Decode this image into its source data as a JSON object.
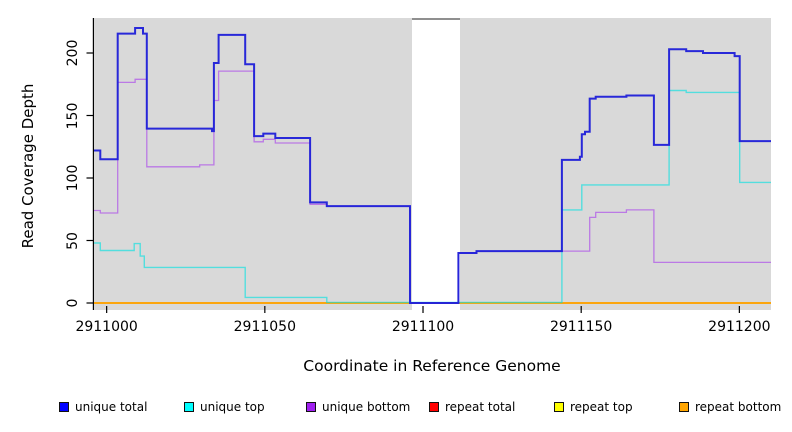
{
  "chart_data": {
    "type": "line",
    "subtype": "step",
    "title": "",
    "xlabel": "Coordinate in Reference Genome",
    "ylabel": "Read Coverage Depth",
    "panel_bg": "#d9d9d9",
    "xlim": [
      2910996,
      2911210
    ],
    "ylim": [
      -5.6,
      228
    ],
    "x_ticks": [
      {
        "value": 2911000,
        "label": "2911000"
      },
      {
        "value": 2911050,
        "label": "2911050"
      },
      {
        "value": 2911100,
        "label": "2911100"
      },
      {
        "value": 2911150,
        "label": "2911150"
      },
      {
        "value": 2911200,
        "label": "2911200"
      }
    ],
    "y_ticks": [
      {
        "value": 0,
        "label": "0"
      },
      {
        "value": 50,
        "label": "50"
      },
      {
        "value": 100,
        "label": "100"
      },
      {
        "value": 150,
        "label": "150"
      },
      {
        "value": 200,
        "label": "200"
      }
    ],
    "gap_region": {
      "x_start": 2911096.4,
      "x_end": 2911111.7,
      "cap_color": "#8f8f8f"
    },
    "series": [
      {
        "name": "repeat total",
        "color": "#e00000",
        "width": 1.4,
        "opacity": 1,
        "points": [
          [
            2910996,
            0
          ]
        ]
      },
      {
        "name": "repeat top",
        "color": "#ffff00",
        "width": 1.4,
        "opacity": 1,
        "points": [
          [
            2910996,
            0
          ]
        ]
      },
      {
        "name": "repeat bottom",
        "color": "#ff9f00",
        "width": 1.6,
        "opacity": 1,
        "points": [
          [
            2910996,
            0
          ]
        ]
      },
      {
        "name": "unique bottom",
        "color": "#a020f0",
        "width": 1.3,
        "opacity": 0.52,
        "points": [
          [
            2910996,
            74
          ],
          [
            2910998,
            72
          ],
          [
            2911003.5,
            176.5
          ],
          [
            2911009,
            179
          ],
          [
            2911012.7,
            109
          ],
          [
            2911029.4,
            110.5
          ],
          [
            2911033.9,
            162
          ],
          [
            2911035.4,
            185.5
          ],
          [
            2911046.6,
            129
          ],
          [
            2911049.5,
            131
          ],
          [
            2911053.3,
            128
          ],
          [
            2911064.3,
            79
          ],
          [
            2911069.6,
            77.5
          ],
          [
            2911095.9,
            0
          ],
          [
            2911111.2,
            40
          ],
          [
            2911116.9,
            41.5
          ],
          [
            2911152.7,
            68.5
          ],
          [
            2911154.6,
            72.5
          ],
          [
            2911164.3,
            74.5
          ],
          [
            2911173,
            32.5
          ]
        ]
      },
      {
        "name": "unique top",
        "color": "#00e0e0",
        "width": 1.4,
        "opacity": 0.62,
        "points": [
          [
            2910996,
            48
          ],
          [
            2910998,
            42
          ],
          [
            2911008.7,
            47.5
          ],
          [
            2911010.6,
            37.5
          ],
          [
            2911011.9,
            28.5
          ],
          [
            2911043.8,
            4.5
          ],
          [
            2911069.6,
            0.5
          ],
          [
            2911143.9,
            74.5
          ],
          [
            2911150.2,
            94.5
          ],
          [
            2911177.8,
            170
          ],
          [
            2911183.2,
            168.5
          ],
          [
            2911200.1,
            96.5
          ]
        ]
      },
      {
        "name": "unique total",
        "color": "#2020d8",
        "width": 2,
        "opacity": 0.96,
        "points": [
          [
            2910996,
            122
          ],
          [
            2910998,
            115
          ],
          [
            2911003.5,
            215.5
          ],
          [
            2911009,
            220
          ],
          [
            2911011.5,
            215.5
          ],
          [
            2911012.7,
            139.5
          ],
          [
            2911033.3,
            137.5
          ],
          [
            2911033.9,
            192
          ],
          [
            2911035.4,
            214.5
          ],
          [
            2911043.8,
            191
          ],
          [
            2911046.6,
            133.5
          ],
          [
            2911049.5,
            135.5
          ],
          [
            2911053.3,
            132
          ],
          [
            2911064.3,
            80.5
          ],
          [
            2911069.6,
            77.5
          ],
          [
            2911095.9,
            0
          ],
          [
            2911111.2,
            40
          ],
          [
            2911116.9,
            41.5
          ],
          [
            2911143.9,
            114.5
          ],
          [
            2911149.6,
            117
          ],
          [
            2911150.2,
            135
          ],
          [
            2911151.2,
            137
          ],
          [
            2911152.7,
            163.5
          ],
          [
            2911154.6,
            165
          ],
          [
            2911164.3,
            166
          ],
          [
            2911173,
            126.5
          ],
          [
            2911177.8,
            203
          ],
          [
            2911183.2,
            201.5
          ],
          [
            2911188.5,
            200
          ],
          [
            2911198.5,
            197.5
          ],
          [
            2911200.1,
            129.5
          ]
        ]
      }
    ],
    "legend": {
      "entries": [
        {
          "label": "unique total",
          "color": "#0000ff"
        },
        {
          "label": "unique top",
          "color": "#00ffff"
        },
        {
          "label": "unique bottom",
          "color": "#a020f0"
        },
        {
          "label": "repeat total",
          "color": "#ff0000"
        },
        {
          "label": "repeat top",
          "color": "#ffff00"
        },
        {
          "label": "repeat bottom",
          "color": "#ffa500"
        }
      ]
    }
  }
}
